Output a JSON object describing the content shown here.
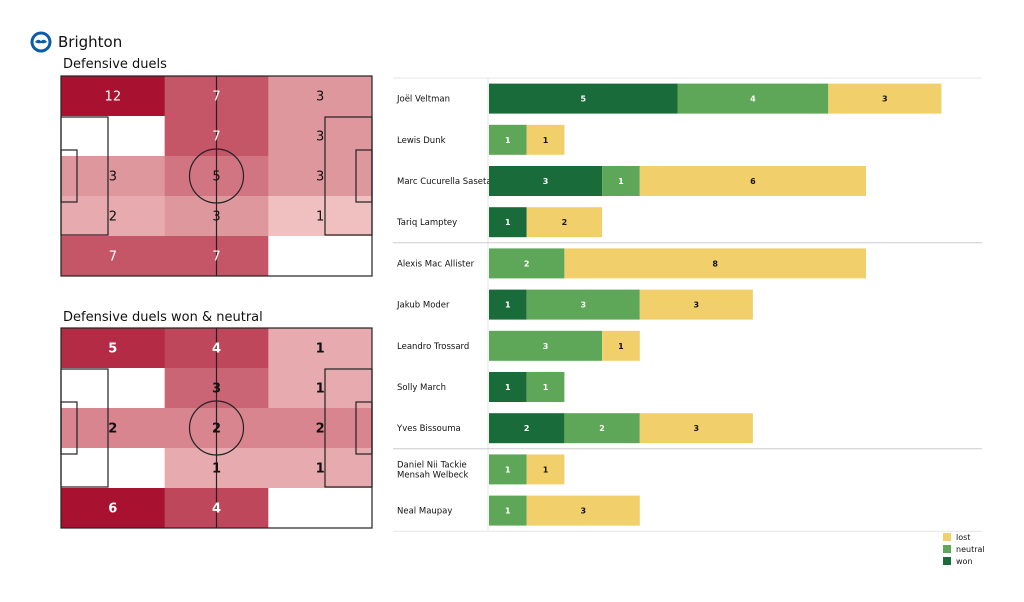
{
  "team": {
    "name": "Brighton",
    "logo_icon": "brighton-crest-icon"
  },
  "colors": {
    "won": "#1a6b3a",
    "neutral": "#5fa758",
    "lost": "#f1d06b",
    "heat_high": "#a8112f",
    "heat_low": "#fde0db",
    "pitch_line": "#222222"
  },
  "chart_data": [
    {
      "type": "heatmap",
      "title": "Defensive duels",
      "rows": 5,
      "cols": 3,
      "values": [
        [
          12,
          7,
          3
        ],
        [
          0,
          7,
          3
        ],
        [
          3,
          5,
          3
        ],
        [
          2,
          3,
          1
        ],
        [
          7,
          7,
          0
        ]
      ],
      "labels": [
        [
          "12",
          "7",
          "3"
        ],
        [
          "",
          "7",
          "3"
        ],
        [
          "3",
          "5",
          "3"
        ],
        [
          "2",
          "3",
          "1"
        ],
        [
          "7",
          "7",
          ""
        ]
      ]
    },
    {
      "type": "heatmap",
      "title": "Defensive duels won & neutral",
      "rows": 5,
      "cols": 3,
      "values": [
        [
          5,
          4,
          1
        ],
        [
          0,
          3,
          1
        ],
        [
          2,
          2,
          2
        ],
        [
          0,
          1,
          1
        ],
        [
          6,
          4,
          0
        ]
      ],
      "labels": [
        [
          "5",
          "4",
          "1"
        ],
        [
          "",
          "3",
          "1"
        ],
        [
          "2",
          "2",
          "2"
        ],
        [
          "",
          "1",
          "1"
        ],
        [
          "6",
          "4",
          ""
        ]
      ]
    },
    {
      "type": "bar",
      "orientation": "horizontal",
      "stacked": true,
      "players": [
        {
          "name": "Joël Veltman",
          "won": 5,
          "neutral": 4,
          "lost": 3
        },
        {
          "name": "Lewis Dunk",
          "won": 0,
          "neutral": 1,
          "lost": 1
        },
        {
          "name": "Marc Cucurella Saseta",
          "won": 3,
          "neutral": 1,
          "lost": 6
        },
        {
          "name": "Tariq Lamptey",
          "won": 1,
          "neutral": 0,
          "lost": 2
        },
        {
          "name": "Alexis Mac Allister",
          "won": 0,
          "neutral": 2,
          "lost": 8
        },
        {
          "name": "Jakub Moder",
          "won": 1,
          "neutral": 3,
          "lost": 3
        },
        {
          "name": "Leandro Trossard",
          "won": 0,
          "neutral": 3,
          "lost": 1
        },
        {
          "name": "Solly March",
          "won": 1,
          "neutral": 1,
          "lost": 0
        },
        {
          "name": "Yves Bissouma",
          "won": 2,
          "neutral": 2,
          "lost": 3
        },
        {
          "name": "Daniel Nii Tackie Mensah Welbeck",
          "won": 0,
          "neutral": 1,
          "lost": 1
        },
        {
          "name": "Neal Maupay",
          "won": 0,
          "neutral": 1,
          "lost": 3
        }
      ],
      "group_breaks_after": [
        3,
        8
      ],
      "legend": {
        "position": "bottom-right",
        "items": [
          "lost",
          "neutral",
          "won"
        ]
      }
    }
  ]
}
